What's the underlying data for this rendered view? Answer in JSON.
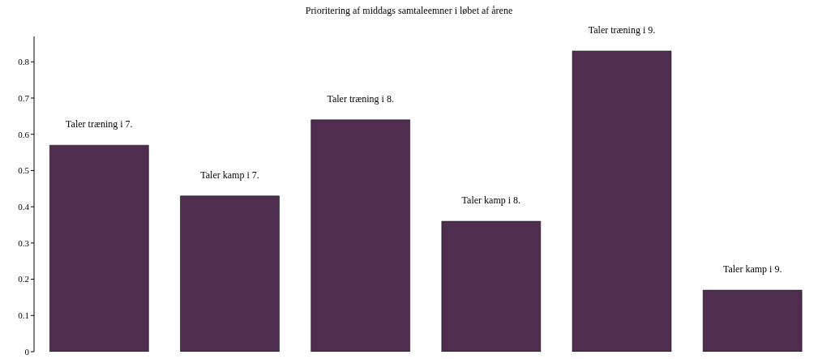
{
  "chart_data": {
    "type": "bar",
    "title": "Prioritering af middags samtaleemner i løbet af årene",
    "categories": [
      "Taler træning i 7.",
      "Taler kamp i 7.",
      "Taler træning i 8.",
      "Taler kamp i 8.",
      "Taler træning i 9.",
      "Taler kamp i 9."
    ],
    "values": [
      0.57,
      0.43,
      0.64,
      0.36,
      0.83,
      0.17
    ],
    "color": "#4f2d4f",
    "ylim": [
      0,
      0.87
    ],
    "yticks": [
      0,
      0.1,
      0.2,
      0.3,
      0.4,
      0.5,
      0.6,
      0.7,
      0.8
    ],
    "grid": false
  }
}
